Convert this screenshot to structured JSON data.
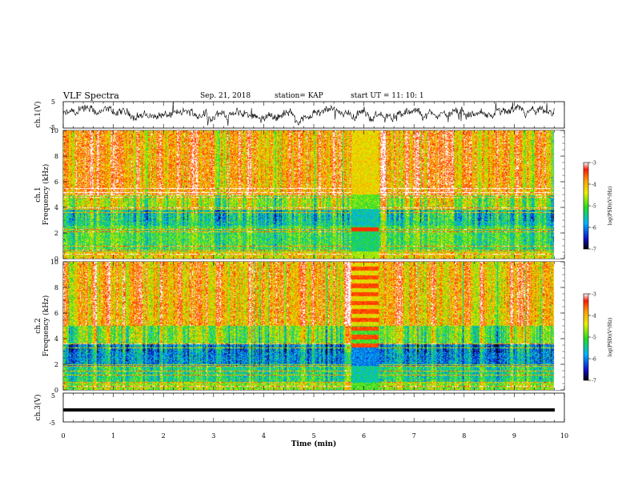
{
  "header": {
    "title": "VLF Spectra",
    "date": "Sep. 21, 2018",
    "station": "station= KAP",
    "start": "start UT = 11: 10: 1"
  },
  "chart_data": [
    {
      "type": "line",
      "name": "ch1-waveform",
      "ylabel": "ch.1(V)",
      "ylim": [
        -5,
        5
      ],
      "yticks": [
        "5",
        "-5"
      ],
      "xlim": [
        0,
        10
      ]
    },
    {
      "type": "heatmap",
      "name": "ch1-spectrogram",
      "ylabel_line1": "ch.1",
      "ylabel_line2": "Frequency (kHz)",
      "ylim": [
        0,
        10
      ],
      "yticks": [
        "0",
        "2",
        "4",
        "6",
        "8",
        "10"
      ],
      "xlim": [
        0,
        10
      ],
      "data_end_min": 9.8,
      "colorbar": {
        "label": "log(PSD)(V²/Hz)",
        "range": [
          -7,
          -3
        ],
        "ticks": [
          "-3",
          "-4",
          "-5",
          "-6",
          "-7"
        ]
      }
    },
    {
      "type": "heatmap",
      "name": "ch2-spectrogram",
      "ylabel_line1": "ch.2",
      "ylabel_line2": "Frequency (kHz)",
      "ylim": [
        0,
        10
      ],
      "yticks": [
        "0",
        "2",
        "4",
        "6",
        "8",
        "10"
      ],
      "xlim": [
        0,
        10
      ],
      "data_end_min": 9.8,
      "colorbar": {
        "label": "log(PSD)(V²/Hz)",
        "range": [
          -7,
          -3
        ],
        "ticks": [
          "-3",
          "-4",
          "-5",
          "-6",
          "-7"
        ]
      }
    },
    {
      "type": "line",
      "name": "ch3-waveform",
      "ylabel": "ch.3(V)",
      "ylim": [
        -5,
        5
      ],
      "yticks": [
        "5",
        "-5"
      ],
      "xlim": [
        0,
        10
      ]
    }
  ],
  "xaxis": {
    "label": "Time (min)",
    "ticks": [
      "0",
      "1",
      "2",
      "3",
      "4",
      "5",
      "6",
      "7",
      "8",
      "9",
      "10"
    ]
  }
}
